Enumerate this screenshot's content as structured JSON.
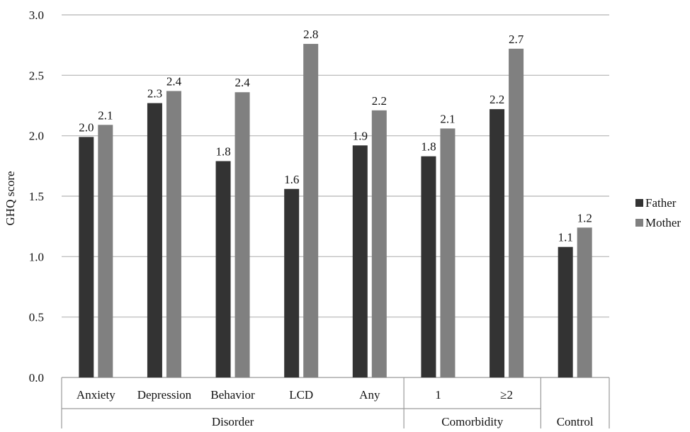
{
  "chart_data": {
    "type": "bar",
    "ylabel": "GHQ score",
    "ylim": [
      0,
      3.0
    ],
    "y_ticks": [
      "0.0",
      "0.5",
      "1.0",
      "1.5",
      "2.0",
      "2.5",
      "3.0"
    ],
    "grid": true,
    "legend_position": "right",
    "categories": [
      "Anxiety",
      "Depression",
      "Behavior",
      "LCD",
      "Any",
      "1",
      "≥2",
      "Control"
    ],
    "groups": [
      {
        "label": "Disorder",
        "categories": [
          "Anxiety",
          "Depression",
          "Behavior",
          "LCD",
          "Any"
        ]
      },
      {
        "label": "Comorbidity",
        "categories": [
          "1",
          "≥2"
        ]
      },
      {
        "label": "Control",
        "categories": [
          "Control"
        ]
      }
    ],
    "series": [
      {
        "name": "Father",
        "color": "#333333",
        "values": [
          1.99,
          2.27,
          1.79,
          1.56,
          1.92,
          1.83,
          2.22,
          1.08
        ],
        "labels": [
          "2.0",
          "2.3",
          "1.8",
          "1.6",
          "1.9",
          "1.8",
          "2.2",
          "1.1"
        ]
      },
      {
        "name": "Mother",
        "color": "#808080",
        "values": [
          2.09,
          2.37,
          2.36,
          2.76,
          2.21,
          2.06,
          2.72,
          1.24
        ],
        "labels": [
          "2.1",
          "2.4",
          "2.4",
          "2.8",
          "2.2",
          "2.1",
          "2.7",
          "1.2"
        ]
      }
    ]
  }
}
